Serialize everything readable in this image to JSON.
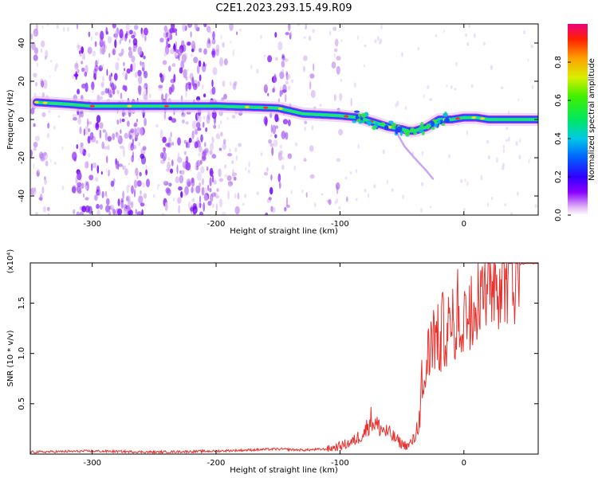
{
  "title": "C2E1.2023.293.15.49.R09",
  "colors": {
    "snr_line": "#e8322e",
    "axis": "#000000",
    "background": "#ffffff"
  },
  "chart_data": [
    {
      "type": "heatmap",
      "name": "spectrogram",
      "xlabel": "Height of straight line (km)",
      "ylabel": "Frequency (Hz)",
      "xlim": [
        -350,
        60
      ],
      "ylim": [
        -50,
        50
      ],
      "xticks": [
        -300,
        -200,
        -100,
        0
      ],
      "yticks": [
        -40,
        -20,
        0,
        20,
        40
      ],
      "ridge": {
        "description": "dominant spectral ridge (peak frequency vs height)",
        "x": [
          -345,
          -320,
          -300,
          -250,
          -200,
          -150,
          -130,
          -100,
          -85,
          -70,
          -60,
          -50,
          -45,
          -40,
          -35,
          -30,
          -25,
          -20,
          -10,
          0,
          10,
          20,
          40,
          60
        ],
        "y": [
          9,
          8,
          7,
          7,
          7,
          6,
          3,
          2,
          1,
          -2,
          -4,
          -5,
          -6,
          -6,
          -5,
          -4,
          -2,
          0,
          0,
          1,
          1,
          0,
          0,
          0
        ]
      },
      "colorbar": {
        "label": "Normalized spectral amplitude",
        "range": [
          0.0,
          1.0
        ],
        "ticks": [
          0.0,
          0.2,
          0.4,
          0.6,
          0.8
        ],
        "tick_labels": [
          "0.0",
          "0.2",
          "0.4",
          "0.6",
          "0.8"
        ]
      }
    },
    {
      "type": "line",
      "name": "snr",
      "xlabel": "Height of straight line (km)",
      "ylabel": "SNR (10 * v/v)",
      "scale_label": "(x10⁴)",
      "xlim": [
        -350,
        60
      ],
      "ylim": [
        0,
        1.9
      ],
      "xticks": [
        -300,
        -200,
        -100,
        0
      ],
      "yticks": [
        0.5,
        1.0,
        1.5
      ],
      "ytick_labels": [
        "0.5",
        "1.0",
        "1.5"
      ],
      "series": [
        {
          "name": "SNR",
          "x": [
            -350,
            -300,
            -250,
            -200,
            -150,
            -130,
            -110,
            -100,
            -90,
            -80,
            -75,
            -70,
            -60,
            -55,
            -50,
            -45,
            -40,
            -35,
            -30,
            -25,
            -20,
            -15,
            -10,
            -5,
            0,
            5,
            10,
            20,
            30,
            40,
            50,
            60
          ],
          "y": [
            0.02,
            0.03,
            0.02,
            0.03,
            0.05,
            0.04,
            0.05,
            0.08,
            0.12,
            0.22,
            0.35,
            0.28,
            0.2,
            0.15,
            0.1,
            0.08,
            0.15,
            0.4,
            0.9,
            1.2,
            1.1,
            1.3,
            1.15,
            1.4,
            1.3,
            1.55,
            1.65,
            1.78,
            1.85,
            1.88,
            1.9,
            1.9
          ]
        }
      ]
    }
  ]
}
